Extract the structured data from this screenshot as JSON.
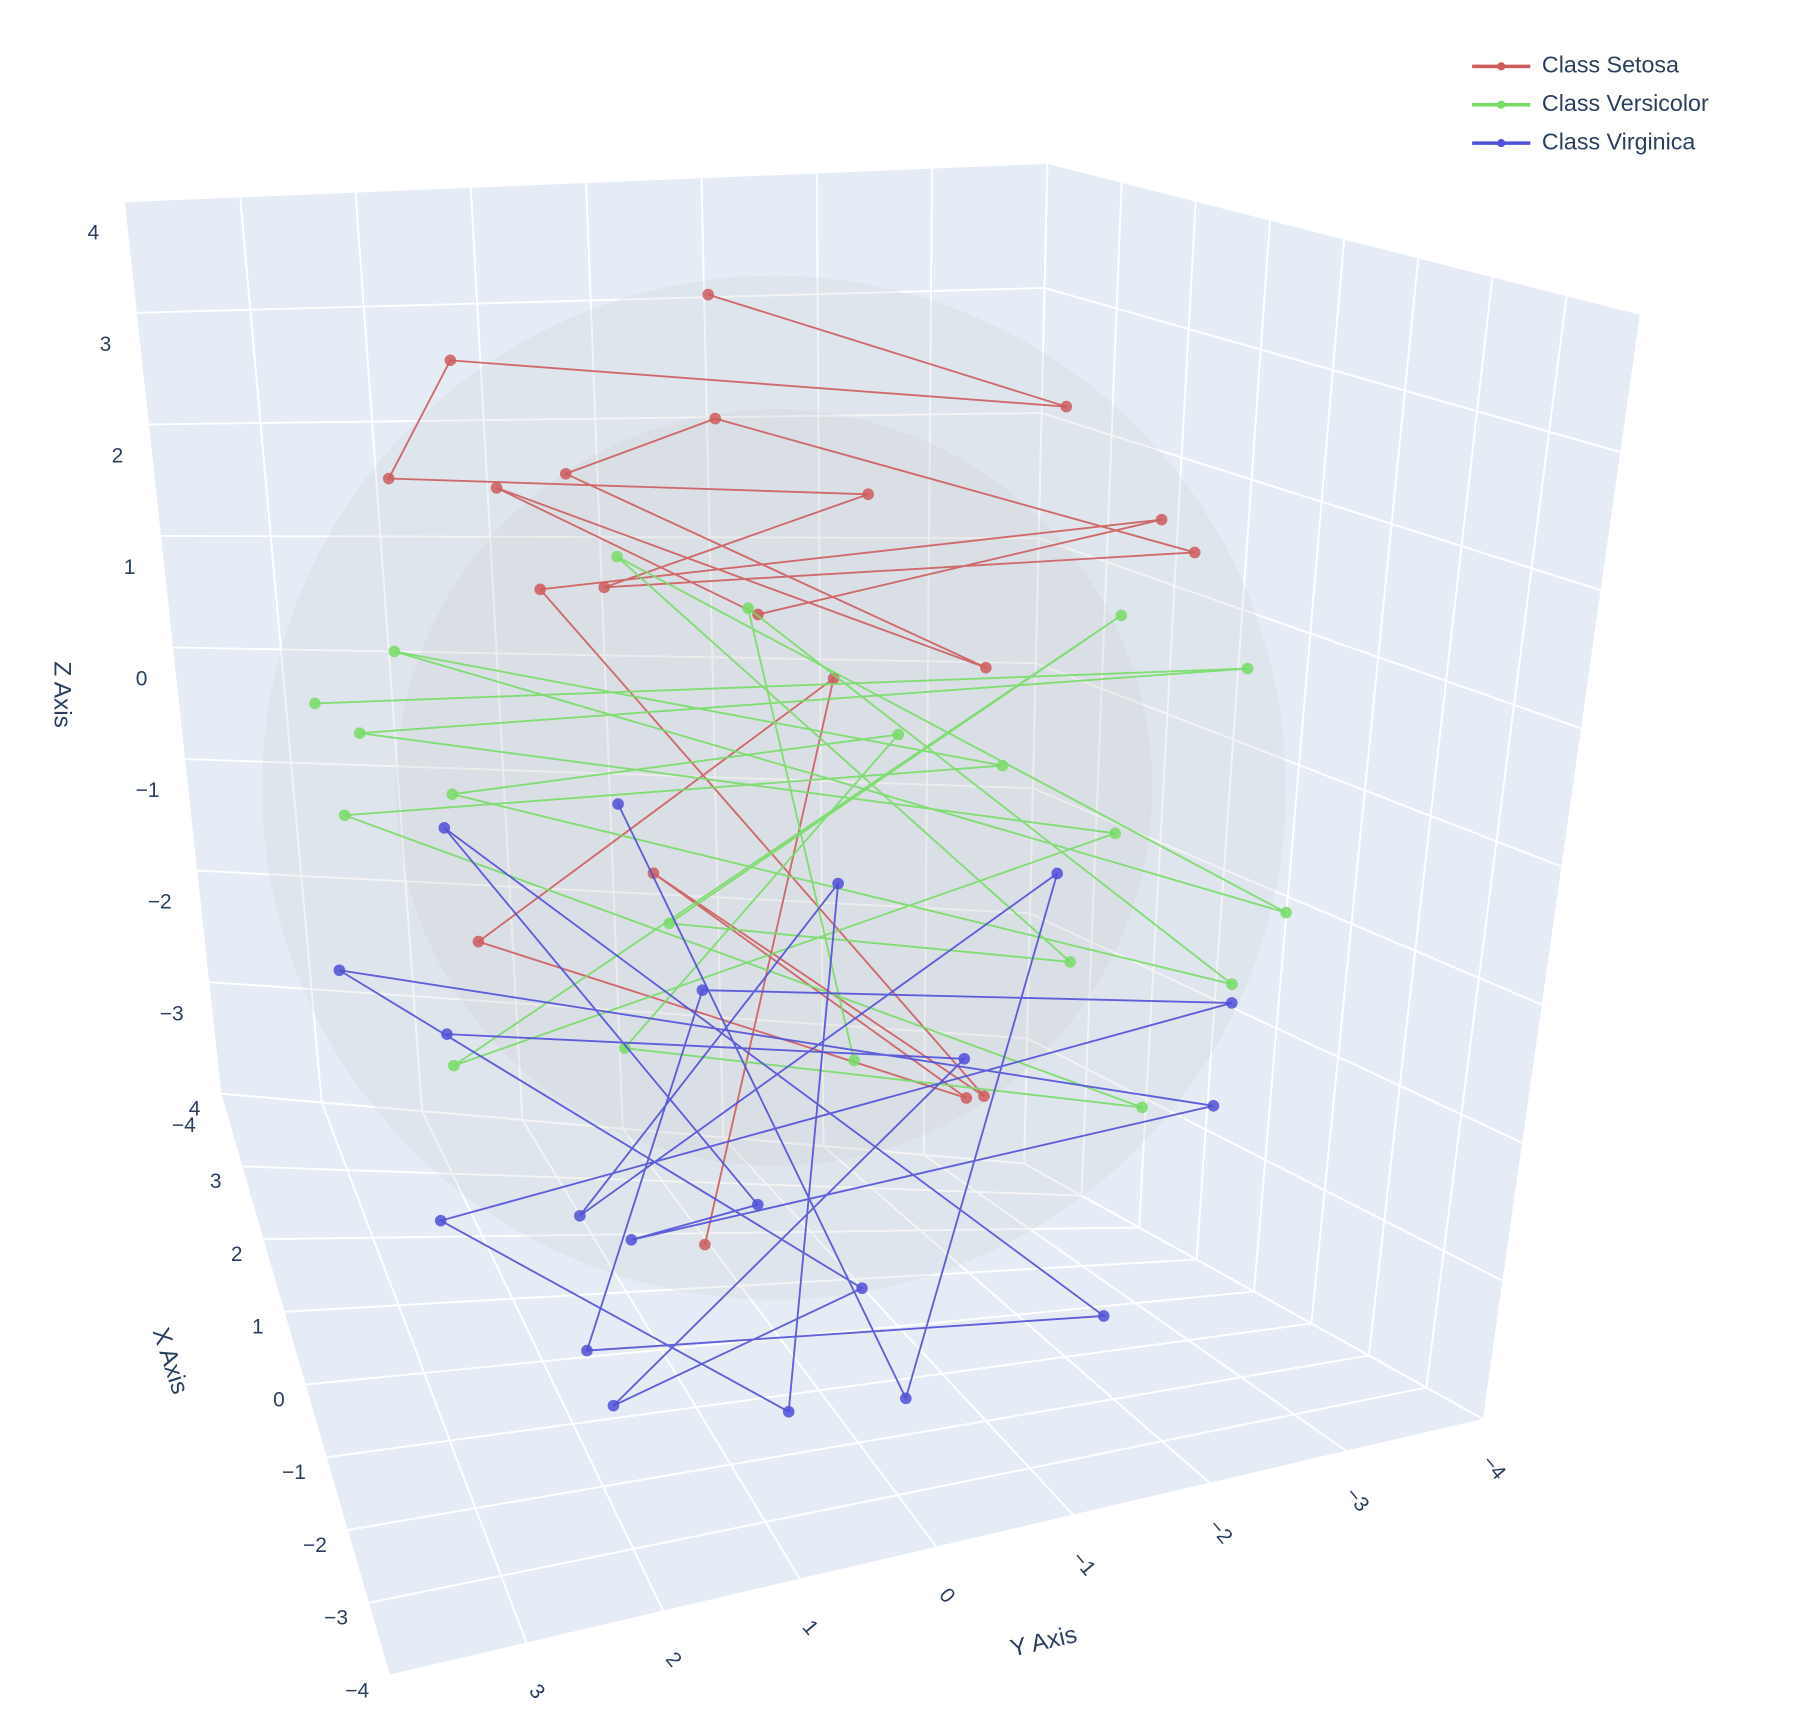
{
  "chart_data": {
    "type": "scatter3d",
    "mode": "lines+markers",
    "x_label": "X Axis",
    "y_label": "Y Axis",
    "z_label": "Z Axis",
    "xlim": [
      -4,
      4
    ],
    "ylim": [
      -4,
      4
    ],
    "zlim": [
      -4,
      4
    ],
    "xticks": [
      {
        "value": -4,
        "label": "−4"
      },
      {
        "value": -3,
        "label": "−3"
      },
      {
        "value": -2,
        "label": "−2"
      },
      {
        "value": -1,
        "label": "−1"
      },
      0,
      1,
      2,
      3,
      4
    ],
    "yticks": [
      {
        "value": -4,
        "label": "−4"
      },
      {
        "value": -3,
        "label": "−3"
      },
      {
        "value": -2,
        "label": "−2"
      },
      {
        "value": -1,
        "label": "−1"
      },
      0,
      1,
      2,
      3
    ],
    "zticks": [
      {
        "value": -4,
        "label": "−4"
      },
      {
        "value": -3,
        "label": "−3"
      },
      {
        "value": -2,
        "label": "−2"
      },
      {
        "value": -1,
        "label": "−1"
      },
      0,
      1,
      2,
      3,
      4
    ],
    "grid": true,
    "legend_position": "top-right",
    "series": [
      {
        "name": "Class Setosa",
        "color": "#cd5c5c",
        "x": [
          0.5,
          -1.2,
          2.1,
          1.4,
          -0.8,
          0.2,
          -2.0,
          1.0,
          2.5,
          -1.5,
          0.0,
          1.8,
          -0.5,
          0.9,
          -2.3,
          1.2,
          -0.3,
          0.6,
          2.0,
          -1.0
        ],
        "y": [
          0.3,
          -1.6,
          1.8,
          2.5,
          -0.4,
          1.2,
          -2.2,
          0.1,
          0.8,
          -1.0,
          2.0,
          -0.5,
          -2.6,
          1.5,
          -0.8,
          0.6,
          -1.4,
          2.2,
          -1.2,
          0.9
        ],
        "z": [
          3.9,
          3.2,
          3.1,
          2.4,
          2.6,
          1.8,
          2.2,
          2.8,
          2.0,
          1.4,
          2.7,
          1.0,
          2.1,
          1.6,
          -1.5,
          -0.8,
          -2.2,
          -1.0,
          0.4,
          -2.8
        ]
      },
      {
        "name": "Class Versicolor",
        "color": "#77dd66",
        "x": [
          1.5,
          -0.5,
          2.8,
          0.4,
          -1.8,
          1.1,
          -2.6,
          0.2,
          2.2,
          -1.2,
          3.0,
          -0.3,
          1.7,
          -2.2,
          0.8,
          -0.9,
          2.5,
          -1.5,
          0.0,
          1.3
        ],
        "y": [
          3.2,
          -3.3,
          2.6,
          -2.8,
          2.9,
          -3.1,
          1.5,
          -2.4,
          0.5,
          -3.4,
          2.2,
          -1.6,
          3.0,
          -2.0,
          1.0,
          -0.6,
          1.9,
          -2.9,
          0.2,
          -1.1
        ],
        "z": [
          0.6,
          0.9,
          -0.2,
          -0.5,
          -0.9,
          1.0,
          0.2,
          -1.4,
          1.4,
          -0.8,
          0.4,
          0.3,
          -0.4,
          -1.8,
          -2.0,
          0.8,
          -0.6,
          -1.2,
          1.6,
          -2.4
        ]
      },
      {
        "name": "Class Virginica",
        "color": "#5050d8",
        "x": [
          -1.0,
          1.2,
          -2.5,
          0.3,
          2.0,
          -1.8,
          0.8,
          -0.4,
          1.6,
          -3.0,
          0.1,
          2.4,
          -1.3,
          0.9,
          -2.2,
          1.9,
          -0.7,
          0.5,
          -1.6,
          1.1
        ],
        "y": [
          2.8,
          -2.0,
          2.0,
          -0.8,
          3.1,
          -2.7,
          1.0,
          0.3,
          2.2,
          -1.5,
          1.6,
          -0.2,
          -3.0,
          2.6,
          0.6,
          -1.2,
          1.8,
          -2.4,
          -0.5,
          0.9
        ],
        "z": [
          -1.0,
          -2.4,
          -3.2,
          -3.8,
          -1.8,
          -2.0,
          -3.5,
          -2.8,
          -0.5,
          -3.0,
          -4.0,
          -2.2,
          -1.4,
          -3.3,
          -3.6,
          -1.2,
          -2.6,
          -0.8,
          -3.9,
          -0.2
        ]
      }
    ]
  }
}
